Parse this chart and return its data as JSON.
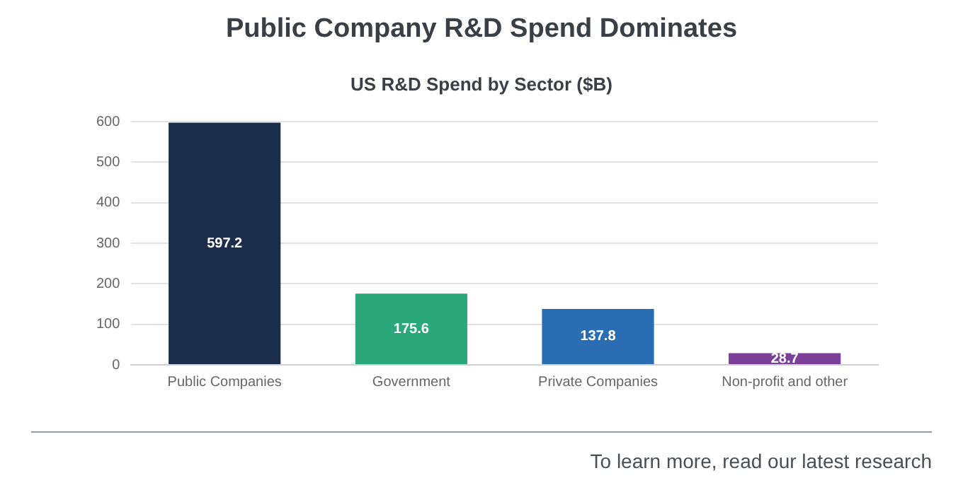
{
  "chart_data": {
    "type": "bar",
    "title": "Public Company R&D Spend Dominates",
    "subtitle": "US R&D Spend by Sector ($B)",
    "categories": [
      "Public Companies",
      "Government",
      "Private Companies",
      "Non-profit and other"
    ],
    "values": [
      597.2,
      175.6,
      137.8,
      28.7
    ],
    "colors": [
      "#1b2d4a",
      "#2aa87b",
      "#2b6db3",
      "#7c3f99"
    ],
    "ylim": [
      0,
      600
    ],
    "yticks": [
      0,
      100,
      200,
      300,
      400,
      500,
      600
    ],
    "grid": "y",
    "data_labels": true,
    "annotations": [
      "To learn more, read our latest research"
    ]
  }
}
